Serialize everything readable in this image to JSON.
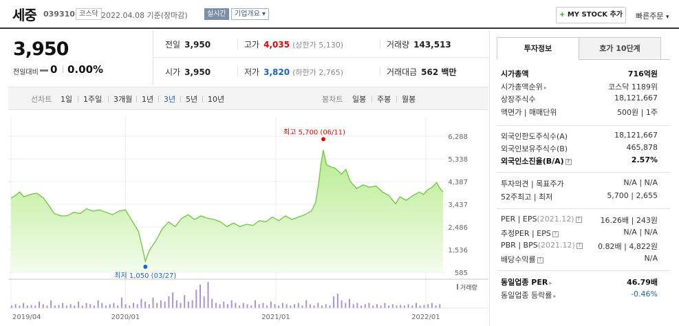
{
  "header": {
    "name": "세중",
    "code": "039310",
    "market": "코스닥",
    "date": "2022.04.08  기준(장마감)",
    "realtime": "실시간",
    "overview": "기업개요",
    "mystock_plus": "+",
    "mystock": "MY STOCK 추가",
    "quick_order": "빠른주문"
  },
  "summary": {
    "price": "3,950",
    "diff_label": "전일대비",
    "diff": "0",
    "rate": "0.00%"
  },
  "quote": {
    "prev_label": "전일",
    "prev": "3,950",
    "high_label": "고가",
    "high": "4,035",
    "upper_limit": "(상한가 5,130)",
    "volume_label": "거래량",
    "volume": "143,513",
    "open_label": "시가",
    "open": "3,950",
    "low_label": "저가",
    "low": "3,820",
    "lower_limit": "(하한가 2,765)",
    "amount_label": "거래대금",
    "amount": "562 백만"
  },
  "tabs": {
    "line_label": "선차트",
    "line_tabs": [
      "1일",
      "1주일",
      "3개월",
      "1년",
      "3년",
      "5년",
      "10년"
    ],
    "active_line": 4,
    "candle_label": "봉차트",
    "candle_tabs": [
      "일봉",
      "주봉",
      "월봉"
    ]
  },
  "chart_data": {
    "type": "area",
    "y_ticks": [
      "6,288",
      "5,338",
      "4,387",
      "3,437",
      "2,486",
      "1,536",
      "585"
    ],
    "ylim": [
      585,
      6288
    ],
    "x_ticks": [
      {
        "label": "2019/04",
        "pos": 0.0
      },
      {
        "label": "2020/01",
        "pos": 0.265
      },
      {
        "label": "2021/01",
        "pos": 0.613
      },
      {
        "label": "2022/01",
        "pos": 0.96
      }
    ],
    "high_label": "최고 5,700 (06/11)",
    "low_label": "최저 1,050 (03/27)",
    "high_point": {
      "t": 0.723,
      "v": 5700
    },
    "low_point": {
      "t": 0.311,
      "v": 1050
    },
    "volume_legend": "거래량",
    "series": [
      {
        "t": 0.0,
        "v": 3700
      },
      {
        "t": 0.01,
        "v": 3800
      },
      {
        "t": 0.02,
        "v": 3950
      },
      {
        "t": 0.03,
        "v": 3750
      },
      {
        "t": 0.045,
        "v": 3850
      },
      {
        "t": 0.06,
        "v": 3900
      },
      {
        "t": 0.075,
        "v": 3700
      },
      {
        "t": 0.085,
        "v": 3450
      },
      {
        "t": 0.1,
        "v": 3050
      },
      {
        "t": 0.115,
        "v": 2950
      },
      {
        "t": 0.13,
        "v": 2950
      },
      {
        "t": 0.145,
        "v": 3100
      },
      {
        "t": 0.16,
        "v": 3050
      },
      {
        "t": 0.175,
        "v": 3250
      },
      {
        "t": 0.19,
        "v": 3150
      },
      {
        "t": 0.205,
        "v": 3200
      },
      {
        "t": 0.22,
        "v": 3100
      },
      {
        "t": 0.235,
        "v": 3000
      },
      {
        "t": 0.25,
        "v": 3150
      },
      {
        "t": 0.265,
        "v": 3200
      },
      {
        "t": 0.275,
        "v": 2900
      },
      {
        "t": 0.285,
        "v": 2600
      },
      {
        "t": 0.295,
        "v": 2300
      },
      {
        "t": 0.303,
        "v": 1700
      },
      {
        "t": 0.311,
        "v": 1050
      },
      {
        "t": 0.32,
        "v": 1500
      },
      {
        "t": 0.335,
        "v": 1900
      },
      {
        "t": 0.35,
        "v": 2400
      },
      {
        "t": 0.365,
        "v": 2700
      },
      {
        "t": 0.38,
        "v": 2500
      },
      {
        "t": 0.395,
        "v": 2850
      },
      {
        "t": 0.41,
        "v": 3000
      },
      {
        "t": 0.425,
        "v": 2800
      },
      {
        "t": 0.44,
        "v": 2950
      },
      {
        "t": 0.455,
        "v": 2850
      },
      {
        "t": 0.47,
        "v": 2800
      },
      {
        "t": 0.485,
        "v": 2700
      },
      {
        "t": 0.5,
        "v": 2500
      },
      {
        "t": 0.515,
        "v": 2650
      },
      {
        "t": 0.53,
        "v": 2500
      },
      {
        "t": 0.545,
        "v": 2600
      },
      {
        "t": 0.56,
        "v": 2550
      },
      {
        "t": 0.575,
        "v": 2750
      },
      {
        "t": 0.59,
        "v": 2700
      },
      {
        "t": 0.605,
        "v": 2900
      },
      {
        "t": 0.62,
        "v": 2750
      },
      {
        "t": 0.635,
        "v": 2950
      },
      {
        "t": 0.65,
        "v": 2800
      },
      {
        "t": 0.665,
        "v": 2900
      },
      {
        "t": 0.68,
        "v": 3000
      },
      {
        "t": 0.695,
        "v": 3150
      },
      {
        "t": 0.705,
        "v": 3500
      },
      {
        "t": 0.712,
        "v": 4300
      },
      {
        "t": 0.718,
        "v": 5200
      },
      {
        "t": 0.723,
        "v": 5700
      },
      {
        "t": 0.73,
        "v": 5100
      },
      {
        "t": 0.74,
        "v": 5000
      },
      {
        "t": 0.75,
        "v": 4950
      },
      {
        "t": 0.765,
        "v": 4700
      },
      {
        "t": 0.775,
        "v": 4900
      },
      {
        "t": 0.785,
        "v": 4400
      },
      {
        "t": 0.8,
        "v": 4100
      },
      {
        "t": 0.815,
        "v": 4250
      },
      {
        "t": 0.83,
        "v": 4150
      },
      {
        "t": 0.845,
        "v": 4200
      },
      {
        "t": 0.86,
        "v": 3950
      },
      {
        "t": 0.875,
        "v": 3800
      },
      {
        "t": 0.89,
        "v": 3450
      },
      {
        "t": 0.9,
        "v": 3750
      },
      {
        "t": 0.915,
        "v": 3600
      },
      {
        "t": 0.93,
        "v": 3800
      },
      {
        "t": 0.945,
        "v": 3950
      },
      {
        "t": 0.955,
        "v": 3850
      },
      {
        "t": 0.965,
        "v": 4050
      },
      {
        "t": 0.975,
        "v": 4150
      },
      {
        "t": 0.985,
        "v": 4350
      },
      {
        "t": 0.993,
        "v": 4100
      },
      {
        "t": 1.0,
        "v": 3950
      }
    ],
    "volume": [
      0.1,
      0.15,
      0.1,
      0.2,
      0.1,
      0.12,
      0.1,
      0.25,
      0.15,
      0.1,
      0.3,
      0.1,
      0.12,
      0.2,
      0.1,
      0.15,
      0.1,
      0.25,
      0.1,
      0.2,
      0.15,
      0.1,
      0.3,
      0.2,
      0.1,
      0.15,
      0.2,
      0.1,
      0.4,
      0.15,
      0.1,
      0.2,
      0.15,
      0.35,
      0.25,
      0.15,
      0.4,
      0.2,
      0.3,
      0.25,
      0.45,
      0.6,
      0.3,
      0.2,
      0.5,
      0.25,
      0.3,
      0.7,
      0.9,
      0.45,
      1.0,
      0.35,
      0.2,
      0.15,
      0.25,
      0.15,
      0.3,
      0.2,
      0.1,
      0.2,
      0.15,
      0.1,
      0.3,
      0.15,
      0.2,
      0.1,
      0.25,
      0.15,
      0.1,
      0.2,
      0.15,
      0.1,
      0.15,
      0.2,
      0.1,
      0.3,
      0.15,
      0.1,
      0.2,
      0.1,
      0.15,
      0.1,
      0.45,
      0.55,
      0.3,
      0.2,
      0.35,
      0.15,
      0.2,
      0.1,
      0.15,
      0.2,
      0.1,
      0.15,
      0.1,
      0.2,
      0.1,
      0.15,
      0.1,
      0.12,
      0.1,
      0.15,
      0.1,
      0.2,
      0.1,
      0.12,
      0.15,
      0.2,
      0.1,
      0.15
    ]
  },
  "right": {
    "tab_info": "투자정보",
    "tab_hoga": "호가 10단계",
    "rows1": [
      {
        "k": "시가총액",
        "v": "716억원",
        "bold": true
      },
      {
        "k": "시가총액순위",
        "v": "코스닥 1189위",
        "arrow": true
      },
      {
        "k": "상장주식수",
        "v": "18,121,667"
      },
      {
        "k": "액면가 | 매매단위",
        "v": "500원 | 1주"
      }
    ],
    "rows2": [
      {
        "k": "외국인한도주식수(A)",
        "v": "18,121,667"
      },
      {
        "k": "외국인보유주식수(B)",
        "v": "465,878"
      },
      {
        "k": "외국인소진율(B/A)",
        "v": "2.57%",
        "bold": true,
        "info": true
      }
    ],
    "rows3": [
      {
        "k": "투자의견 | 목표주가",
        "v": "N/A | N/A"
      },
      {
        "k": "52주최고 | 최저",
        "v": "5,700 | 2,655"
      }
    ],
    "rows4": [
      {
        "k": "PER | EPS",
        "k2": "(2021.12)",
        "v": "16.26배 | 243원",
        "info": true
      },
      {
        "k": "추정PER | EPS",
        "v": "N/A | N/A",
        "info": true
      },
      {
        "k": "PBR | BPS",
        "k2": "(2021.12)",
        "v": "0.82배 | 4,822원",
        "info": true
      },
      {
        "k": "배당수익률",
        "v": "N/A",
        "info": true
      }
    ],
    "rows5": [
      {
        "k": "동일업종 PER",
        "v": "46.79배",
        "bold": true,
        "arrow": true
      },
      {
        "k": "동일업종 등락률",
        "v": "-0.46%",
        "blue": true,
        "arrow": true
      }
    ]
  }
}
